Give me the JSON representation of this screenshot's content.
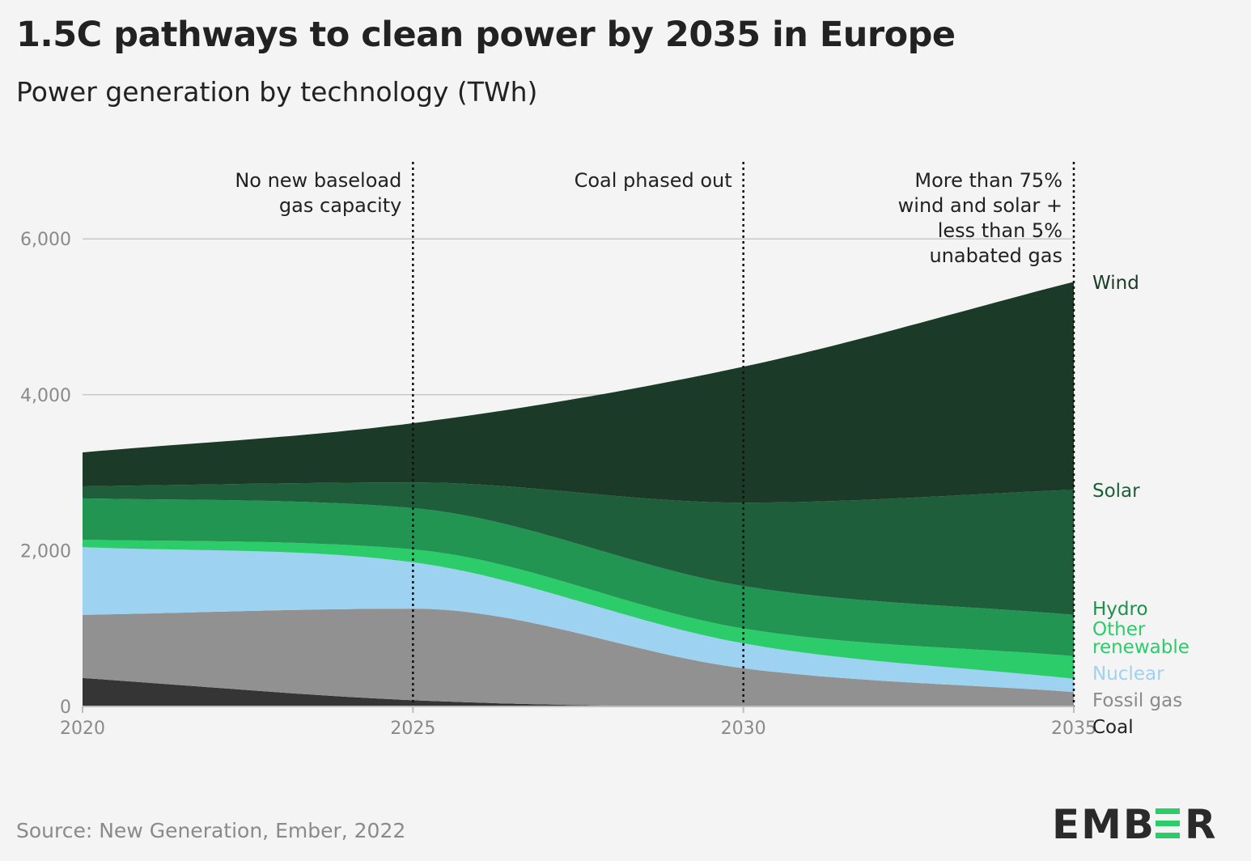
{
  "title": "1.5C pathways to clean power by 2035 in Europe",
  "subtitle": "Power generation by technology (TWh)",
  "source": "Source: New Generation, Ember, 2022",
  "logo_text": "EMBER",
  "chart_data": {
    "type": "area",
    "stacked": true,
    "x": [
      2020,
      2025,
      2030,
      2035
    ],
    "x_ticks": [
      "2020",
      "2025",
      "2030",
      "2035"
    ],
    "y_ticks": [
      "0",
      "2,000",
      "4,000",
      "6,000"
    ],
    "y_tick_values": [
      0,
      2000,
      4000,
      6000
    ],
    "ylim": [
      0,
      7000
    ],
    "xlim": [
      2020,
      2035
    ],
    "grid": "horizontal",
    "legend": "right (direct labels)",
    "series": [
      {
        "name": "Coal",
        "color": "#353535",
        "label_color": "#222222",
        "values": [
          365,
          80,
          0,
          0
        ]
      },
      {
        "name": "Fossil gas",
        "color": "#919191",
        "label_color": "#8a8a8a",
        "values": [
          810,
          1175,
          490,
          185
        ]
      },
      {
        "name": "Nuclear",
        "color": "#9dd2f0",
        "label_color": "#9dd2f0",
        "values": [
          870,
          595,
          320,
          170
        ]
      },
      {
        "name": "Other renewable",
        "label_lines": [
          "Other",
          "renewable"
        ],
        "color": "#2ccc6a",
        "label_color": "#2ccc6a",
        "values": [
          95,
          165,
          190,
          290
        ]
      },
      {
        "name": "Hydro",
        "color": "#239553",
        "label_color": "#1f8f4c",
        "values": [
          530,
          530,
          545,
          530
        ]
      },
      {
        "name": "Solar",
        "color": "#1e5e3a",
        "label_color": "#1e5e3a",
        "values": [
          155,
          330,
          1070,
          1605
        ]
      },
      {
        "name": "Wind",
        "color": "#1b3a27",
        "label_color": "#1b3a27",
        "values": [
          435,
          760,
          1745,
          2670
        ]
      }
    ],
    "annotations": [
      {
        "x": 2025,
        "lines": [
          "No new baseload",
          "gas capacity"
        ]
      },
      {
        "x": 2030,
        "lines": [
          "Coal phased out"
        ]
      },
      {
        "x": 2035,
        "lines": [
          "More than 75%",
          "wind and solar +",
          "less than 5%",
          "unabated gas"
        ]
      }
    ]
  }
}
